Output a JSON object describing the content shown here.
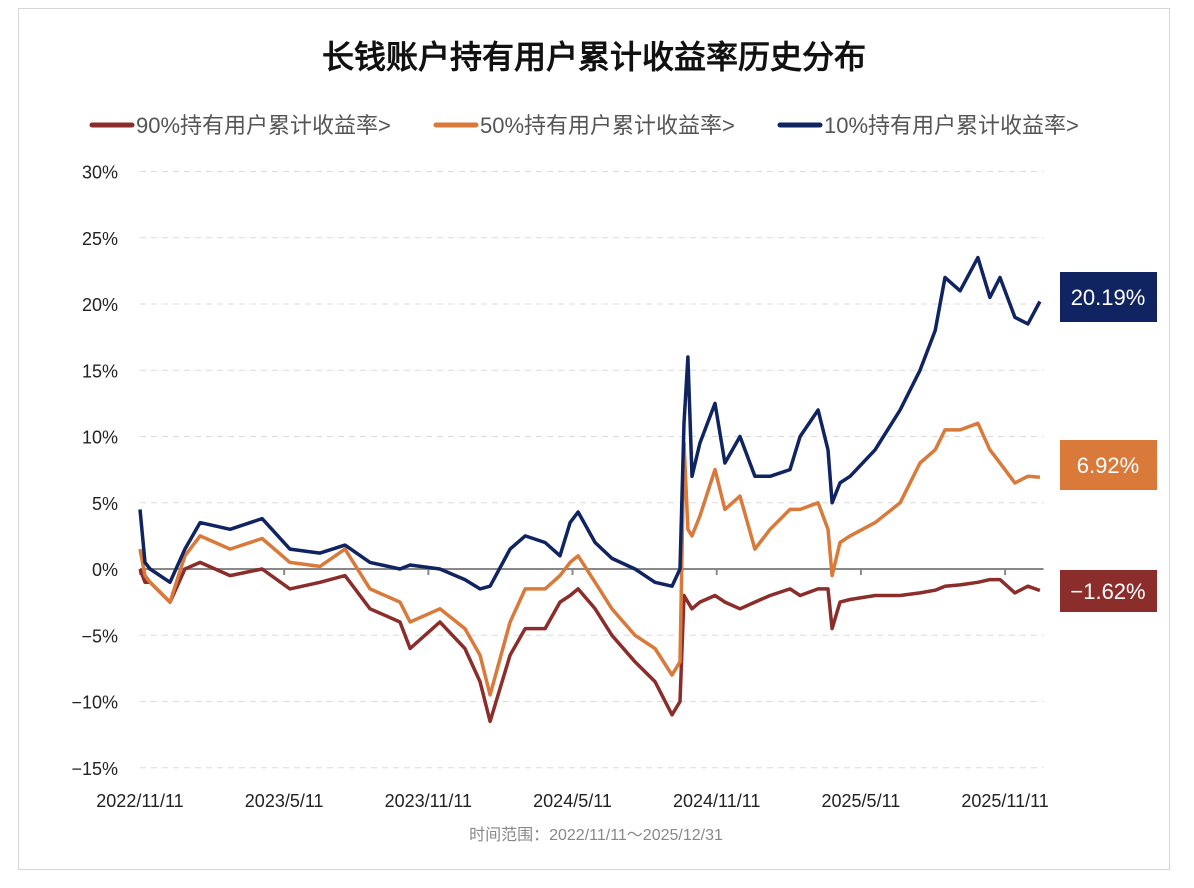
{
  "chart_data": {
    "type": "line",
    "title": "长钱账户持有用户累计收益率历史分布",
    "x_unit": "months since 2022/11/11",
    "x": [
      0,
      0.21,
      0.42,
      1.25,
      1.87,
      2.5,
      3.75,
      5.08,
      6.24,
      7.49,
      8.53,
      9.57,
      10.82,
      11.24,
      12.48,
      13.52,
      14.15,
      14.57,
      15.4,
      16.03,
      16.86,
      17.48,
      17.9,
      18.23,
      18.94,
      19.64,
      20.6,
      21.43,
      22.14,
      22.47,
      22.64,
      22.8,
      22.97,
      23.3,
      23.93,
      24.34,
      24.97,
      25.59,
      26.22,
      27.05,
      27.47,
      28.22,
      28.63,
      28.8,
      29.13,
      29.55,
      30.59,
      31.63,
      32.46,
      33.09,
      33.5,
      34.13,
      34.87,
      35.37,
      35.79,
      36.41,
      36.95,
      37.45
    ],
    "series": [
      {
        "name": "90%持有用户累计收益率>",
        "color": "#8B2D2A",
        "end_label": "−1.62%",
        "values": [
          0,
          -1,
          -1,
          -2.5,
          0,
          0.5,
          -0.5,
          0,
          -1.5,
          -1,
          -0.5,
          -3,
          -4,
          -6,
          -4,
          -6,
          -8.5,
          -11.5,
          -6.5,
          -4.5,
          -4.5,
          -2.5,
          -2,
          -1.5,
          -3,
          -5,
          -7,
          -8.5,
          -11,
          -10,
          -2,
          -2.5,
          -3,
          -2.5,
          -2,
          -2.5,
          -3,
          -2.5,
          -2,
          -1.5,
          -2,
          -1.5,
          -1.5,
          -4.5,
          -2.5,
          -2.3,
          -2,
          -2,
          -1.8,
          -1.6,
          -1.3,
          -1.2,
          -1,
          -0.8,
          -0.8,
          -1.8,
          -1.3,
          -1.62
        ]
      },
      {
        "name": "50%持有用户累计收益率>",
        "color": "#D9793A",
        "end_label": "6.92%",
        "values": [
          1.5,
          -0.5,
          -1,
          -2.5,
          1,
          2.5,
          1.5,
          2.3,
          0.5,
          0.2,
          1.5,
          -1.5,
          -2.5,
          -4,
          -3,
          -4.5,
          -6.5,
          -9.5,
          -4,
          -1.5,
          -1.5,
          -0.5,
          0.5,
          1,
          -1,
          -3,
          -5,
          -6,
          -8,
          -7,
          9.5,
          3,
          2.5,
          4,
          7.5,
          4.5,
          5.5,
          1.5,
          3,
          4.5,
          4.5,
          5,
          3,
          -0.5,
          2,
          2.5,
          3.5,
          5,
          8,
          9,
          10.5,
          10.5,
          11,
          9,
          8,
          6.5,
          7,
          6.92
        ]
      },
      {
        "name": "10%持有用户累计收益率>",
        "color": "#0F2461",
        "end_label": "20.19%",
        "values": [
          4.5,
          0.5,
          0,
          -1,
          1.5,
          3.5,
          3,
          3.8,
          1.5,
          1.2,
          1.8,
          0.5,
          0,
          0.3,
          0,
          -0.8,
          -1.5,
          -1.3,
          1.5,
          2.5,
          2,
          1,
          3.5,
          4.3,
          2,
          0.8,
          0,
          -1,
          -1.3,
          0,
          11,
          16,
          7,
          9.5,
          12.5,
          8,
          10,
          7,
          7,
          7.5,
          10,
          12,
          9,
          5,
          6.5,
          7,
          9,
          12,
          15,
          18,
          22,
          21,
          23.5,
          20.5,
          22,
          19,
          18.5,
          20.19
        ]
      }
    ],
    "ylim": [
      -15,
      30
    ],
    "yticks": [
      30,
      25,
      20,
      15,
      10,
      5,
      0,
      -5,
      -10,
      -15
    ],
    "ytick_labels": [
      "30%",
      "25%",
      "20%",
      "15%",
      "10%",
      "5%",
      "0%",
      "−5%",
      "−10%",
      "−15%"
    ],
    "xlim": [
      0,
      37.6
    ],
    "xticks": [
      0,
      6,
      12,
      18,
      24,
      30,
      36
    ],
    "xtick_labels": [
      "2022/11/11",
      "2023/5/11",
      "2023/11/11",
      "2024/5/11",
      "2024/11/11",
      "2025/5/11",
      "2025/11/11"
    ],
    "grid": true,
    "legend_position": "top",
    "footer": "时间范围：2022/11/11～2025/12/31"
  }
}
